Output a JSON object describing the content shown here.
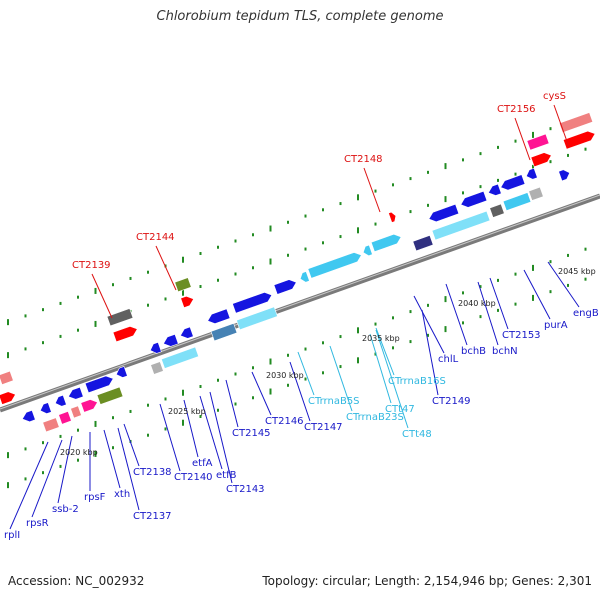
{
  "title": "Chlorobium tepidum TLS, complete genome",
  "footer": {
    "accession": "Accession: NC_002932",
    "summary": "Topology: circular; Length: 2,154,946 bp; Genes: 2,301"
  },
  "colors": {
    "cds_blue": "#1515e0",
    "rna_cyan": "#40c8f0",
    "rna_light": "#7fe0f8",
    "gene_pink": "#ff1493",
    "gene_salmon": "#f08080",
    "gene_red": "#ff0000",
    "gene_olive": "#6b8e23",
    "gene_grey": "#606060",
    "label_blue": "#1818c8",
    "label_cyan": "#30b8e0",
    "label_red": "#dd1111",
    "tick_green": "#228b22"
  },
  "kbp_labels": [
    "2020 kbp",
    "2025 kbp",
    "2030 kbp",
    "2035 kbp",
    "2040 kbp",
    "2045 kbp"
  ],
  "top_labels": [
    "CT2139",
    "CT2144",
    "CT2148",
    "CT2156",
    "cysS"
  ],
  "bottom_labels": [
    "rplI",
    "rpsR",
    "ssb-2",
    "rpsF",
    "xth",
    "CT2137",
    "CT2138",
    "CT2140",
    "etfA",
    "etfB",
    "CT2143",
    "CT2145",
    "CT2146",
    "CT2147",
    "CTrrnaB5S",
    "CTrrnaB23S",
    "CTt48",
    "CTt47",
    "CTrrnaB16S",
    "chlL",
    "CT2149",
    "bchB",
    "bchN",
    "CT2153",
    "purA",
    "engB"
  ]
}
